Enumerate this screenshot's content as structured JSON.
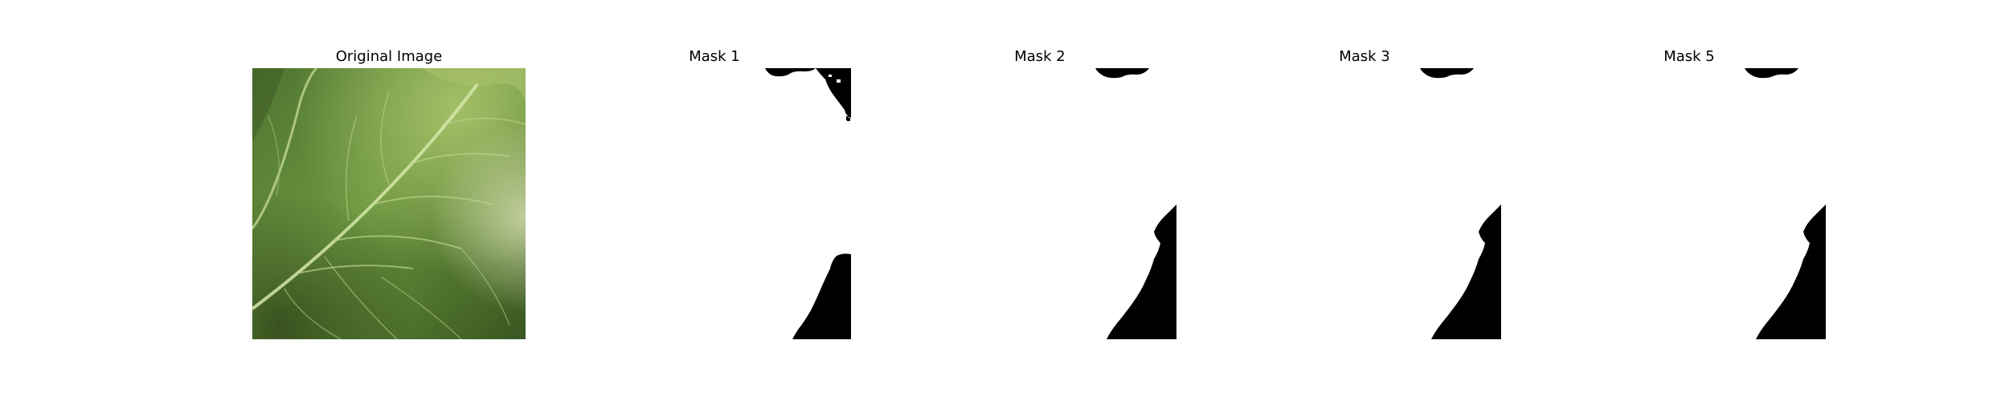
{
  "panels": [
    {
      "title": "Original Image",
      "kind": "leaf-photo"
    },
    {
      "title": "Mask 1",
      "kind": "mask"
    },
    {
      "title": "Mask 2",
      "kind": "mask"
    },
    {
      "title": "Mask 3",
      "kind": "mask"
    },
    {
      "title": "Mask 5",
      "kind": "mask"
    }
  ],
  "colors": {
    "background": "#ffffff",
    "mask_fill": "#000000",
    "leaf_dark": "#3e5a25",
    "leaf_mid": "#5f8a38",
    "leaf_light": "#8fb25a",
    "vein": "#c9dd9a"
  }
}
